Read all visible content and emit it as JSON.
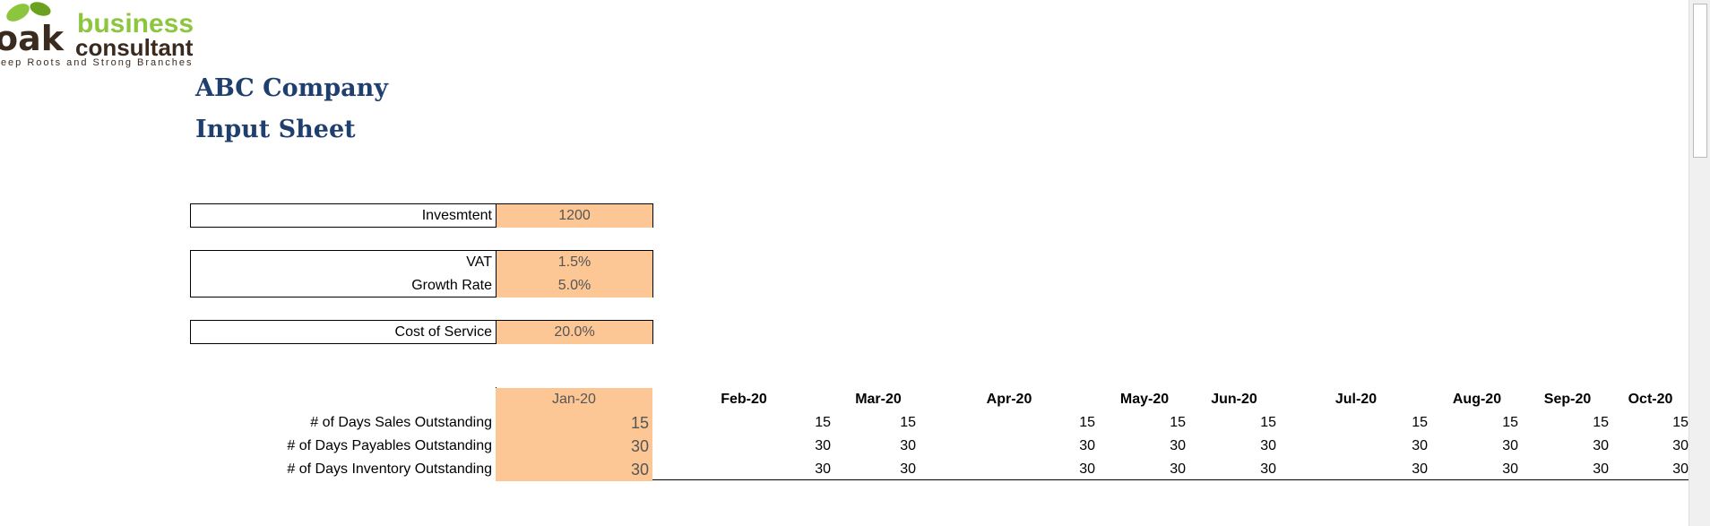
{
  "logo": {
    "name": "business",
    "subname": "consultant",
    "tagline": "Deep Roots and Strong Branches"
  },
  "header": {
    "title": "ABC Company",
    "subtitle": "Input Sheet"
  },
  "inputs": [
    {
      "label": "Invesmtent",
      "value": "1200"
    },
    {
      "label": "VAT",
      "value": "1.5%"
    },
    {
      "label": "Growth Rate",
      "value": "5.0%"
    },
    {
      "label": "Cost of Service",
      "value": "20.0%"
    }
  ],
  "table": {
    "months": [
      "Jan-20",
      "Feb-20",
      "Mar-20",
      "Apr-20",
      "May-20",
      "Jun-20",
      "Jul-20",
      "Aug-20",
      "Sep-20",
      "Oct-20"
    ],
    "rows": [
      {
        "label": "# of Days Sales Outstanding",
        "values": [
          15,
          15,
          15,
          15,
          15,
          15,
          15,
          15,
          15,
          15
        ]
      },
      {
        "label": "# of Days Payables Outstanding",
        "values": [
          30,
          30,
          30,
          30,
          30,
          30,
          30,
          30,
          30,
          30
        ]
      },
      {
        "label": "# of Days Inventory Outstanding",
        "values": [
          30,
          30,
          30,
          30,
          30,
          30,
          30,
          30,
          30,
          30
        ]
      }
    ]
  }
}
